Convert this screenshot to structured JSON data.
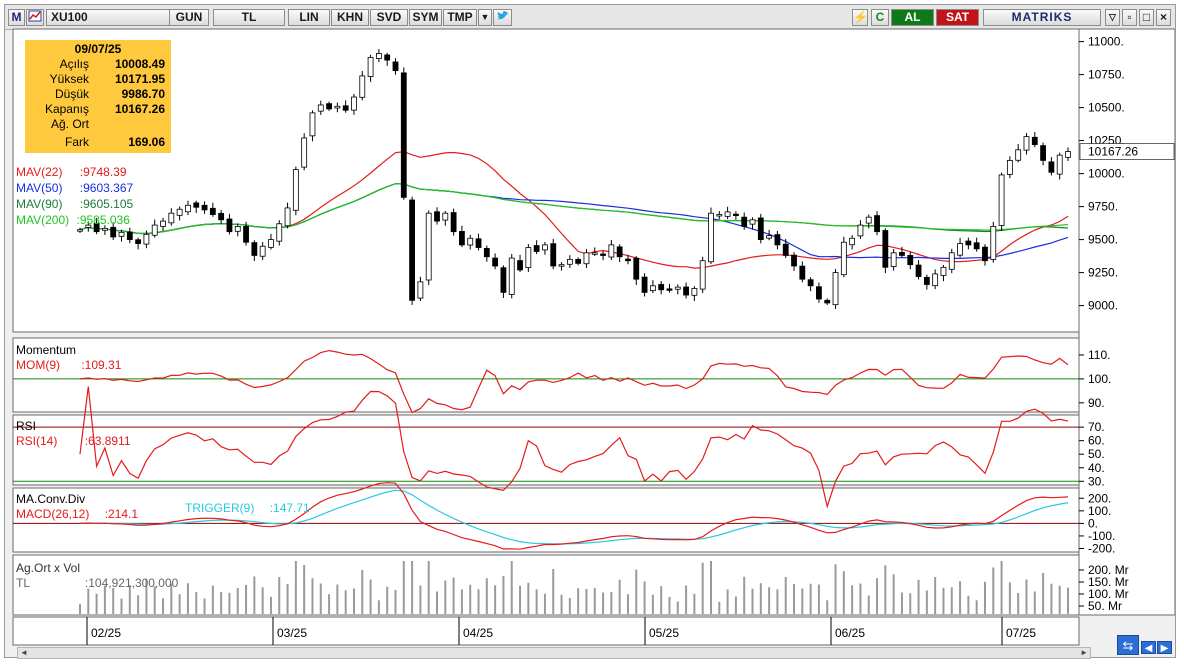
{
  "toolbar": {
    "symbol": "XU100",
    "buttons": [
      "GUN",
      "TL",
      "LIN",
      "KHN",
      "SVD",
      "SYM",
      "TMP"
    ],
    "buy_label": "AL",
    "sell_label": "SAT",
    "brand": "MATRIKS",
    "colors": {
      "buy": "#0d7a17",
      "sell": "#c0141b"
    }
  },
  "infobox": {
    "date": "09/07/25",
    "rows": [
      {
        "label": "Açılış",
        "value": "10008.49"
      },
      {
        "label": "Yüksek",
        "value": "10171.95"
      },
      {
        "label": "Düşük",
        "value": "9986.70"
      },
      {
        "label": "Kapanış",
        "value": "10167.26"
      },
      {
        "label": "Ağ. Ort",
        "value": ""
      },
      {
        "label": "Fark",
        "value": "169.06"
      }
    ]
  },
  "legends": {
    "price": [
      {
        "name": "MAV(22)",
        "value": ":9748.39",
        "color": "#e41b1b"
      },
      {
        "name": "MAV(50)",
        "value": ":9603.367",
        "color": "#1730e0"
      },
      {
        "name": "MAV(90)",
        "value": ":9605.105",
        "color": "#1e7a3a"
      },
      {
        "name": "MAV(200)",
        "value": ":9585.036",
        "color": "#21c321"
      }
    ],
    "momentum": {
      "title": "Momentum",
      "name": "MOM(9)",
      "value": ":109.31"
    },
    "rsi": {
      "title": "RSI",
      "name": "RSI(14)",
      "value": ":63.8911"
    },
    "macd": {
      "title": "MA.Conv.Div",
      "name": "MACD(26,12)",
      "value": ":214.1",
      "trigger_name": "TRIGGER(9)",
      "trigger_value": ":147.71"
    },
    "volume": {
      "title": "Ag.Ort x Vol",
      "name": "TL",
      "value": ":104,921,300,000"
    }
  },
  "chart_data": {
    "type": "candlestick",
    "last_price": "10167.26",
    "price_axis": {
      "ticks": [
        9000,
        9250,
        9500,
        9750,
        10000,
        10250,
        10500,
        10750,
        11000
      ],
      "range": [
        8800,
        11050
      ]
    },
    "x_labels": [
      "02/25",
      "03/25",
      "04/25",
      "05/25",
      "06/25",
      "07/25"
    ],
    "closes": [
      9575,
      9610,
      9560,
      9585,
      9520,
      9555,
      9500,
      9470,
      9540,
      9610,
      9640,
      9700,
      9730,
      9760,
      9745,
      9725,
      9690,
      9650,
      9560,
      9600,
      9480,
      9380,
      9450,
      9500,
      9620,
      9740,
      10030,
      10270,
      10460,
      10520,
      10490,
      10510,
      10480,
      10580,
      10740,
      10880,
      10910,
      10860,
      10780,
      9820,
      9040,
      9180,
      9700,
      9640,
      9700,
      9560,
      9460,
      9510,
      9440,
      9370,
      9300,
      9100,
      9360,
      9270,
      9440,
      9410,
      9460,
      9300,
      9310,
      9350,
      9320,
      9400,
      9400,
      9380,
      9460,
      9370,
      9340,
      9200,
      9100,
      9150,
      9120,
      9120,
      9140,
      9080,
      9130,
      9340,
      9700,
      9690,
      9710,
      9690,
      9600,
      9650,
      9500,
      9530,
      9460,
      9380,
      9300,
      9200,
      9150,
      9050,
      9020,
      9250,
      9480,
      9510,
      9610,
      9670,
      9560,
      9290,
      9400,
      9380,
      9310,
      9220,
      9160,
      9240,
      9290,
      9400,
      9470,
      9460,
      9430,
      9340,
      9600,
      9990,
      10100,
      10180,
      10280,
      10220,
      10100,
      10010,
      10140,
      10167
    ],
    "momentum": {
      "axis": [
        90,
        100,
        110
      ],
      "range": [
        87,
        115
      ]
    },
    "rsi": {
      "axis": [
        30,
        40,
        50,
        60,
        70
      ],
      "range": [
        28,
        76
      ]
    },
    "macd": {
      "axis": [
        -200,
        -100,
        0,
        100,
        200
      ],
      "range": [
        -220,
        250
      ]
    },
    "volume": {
      "axis": [
        "50. Mr",
        "100. Mr",
        "150. Mr",
        "200. Mr"
      ]
    }
  }
}
